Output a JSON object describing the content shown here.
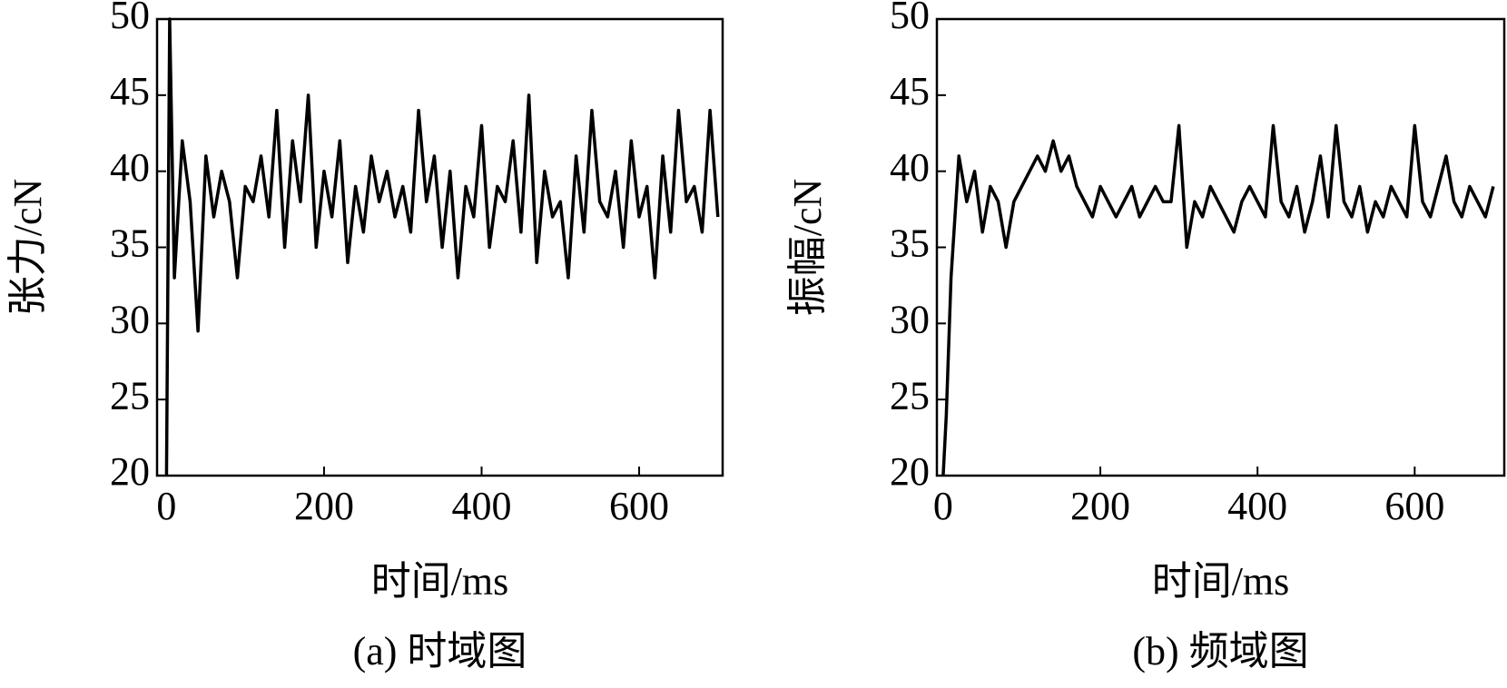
{
  "chart_data": [
    {
      "type": "line",
      "caption": "(a) 时域图",
      "x_label": "时间/ms",
      "y_label": "张力/cN",
      "x": [
        0,
        4,
        10,
        20,
        30,
        40,
        50,
        60,
        70,
        80,
        90,
        100,
        110,
        120,
        130,
        140,
        150,
        160,
        170,
        180,
        190,
        200,
        210,
        220,
        230,
        240,
        250,
        260,
        270,
        280,
        290,
        300,
        310,
        320,
        330,
        340,
        350,
        360,
        370,
        380,
        390,
        400,
        410,
        420,
        430,
        440,
        450,
        460,
        470,
        480,
        490,
        500,
        510,
        520,
        530,
        540,
        550,
        560,
        570,
        580,
        590,
        600,
        610,
        620,
        630,
        640,
        650,
        660,
        670,
        680,
        690,
        700
      ],
      "series": [
        {
          "color": "#000000",
          "values": [
            20,
            50,
            33,
            42,
            38,
            29.5,
            41,
            37,
            40,
            38,
            33,
            39,
            38,
            41,
            37,
            44,
            35,
            42,
            38,
            45,
            35,
            40,
            37,
            42,
            34,
            39,
            36,
            41,
            38,
            40,
            37,
            39,
            36,
            44,
            38,
            41,
            35,
            40,
            33,
            39,
            37,
            43,
            35,
            39,
            38,
            42,
            36,
            45,
            34,
            40,
            37,
            38,
            33,
            41,
            36,
            44,
            38,
            37,
            40,
            35,
            42,
            37,
            39,
            33,
            41,
            36,
            44,
            38,
            39,
            36,
            44,
            37
          ]
        }
      ],
      "xlim": [
        -12,
        706
      ],
      "ylim": [
        20,
        50
      ],
      "xticks": [
        0,
        200,
        400,
        600
      ],
      "yticks": [
        20,
        25,
        30,
        35,
        40,
        45,
        50
      ]
    },
    {
      "type": "line",
      "caption": "(b) 频域图",
      "x_label": "时间/ms",
      "y_label": "振幅/cN",
      "x": [
        0,
        4,
        10,
        20,
        30,
        40,
        50,
        60,
        70,
        80,
        90,
        100,
        110,
        120,
        130,
        140,
        150,
        160,
        170,
        180,
        190,
        200,
        210,
        220,
        230,
        240,
        250,
        260,
        270,
        280,
        290,
        300,
        310,
        320,
        330,
        340,
        350,
        360,
        370,
        380,
        390,
        400,
        410,
        420,
        430,
        440,
        450,
        460,
        470,
        480,
        490,
        500,
        510,
        520,
        530,
        540,
        550,
        560,
        570,
        580,
        590,
        600,
        610,
        620,
        630,
        640,
        650,
        660,
        670,
        680,
        690,
        700
      ],
      "series": [
        {
          "color": "#000000",
          "values": [
            20,
            24,
            33,
            41,
            38,
            40,
            36,
            39,
            38,
            35,
            38,
            39,
            40,
            41,
            40,
            42,
            40,
            41,
            39,
            38,
            37,
            39,
            38,
            37,
            38,
            39,
            37,
            38,
            39,
            38,
            38,
            43,
            35,
            38,
            37,
            39,
            38,
            37,
            36,
            38,
            39,
            38,
            37,
            43,
            38,
            37,
            39,
            36,
            38,
            41,
            37,
            43,
            38,
            37,
            39,
            36,
            38,
            37,
            39,
            38,
            37,
            43,
            38,
            37,
            39,
            41,
            38,
            37,
            39,
            38,
            37,
            39
          ]
        }
      ],
      "xlim": [
        -8,
        714
      ],
      "ylim": [
        20,
        50
      ],
      "xticks": [
        0,
        200,
        400,
        600
      ],
      "yticks": [
        20,
        25,
        30,
        35,
        40,
        45,
        50
      ]
    }
  ]
}
